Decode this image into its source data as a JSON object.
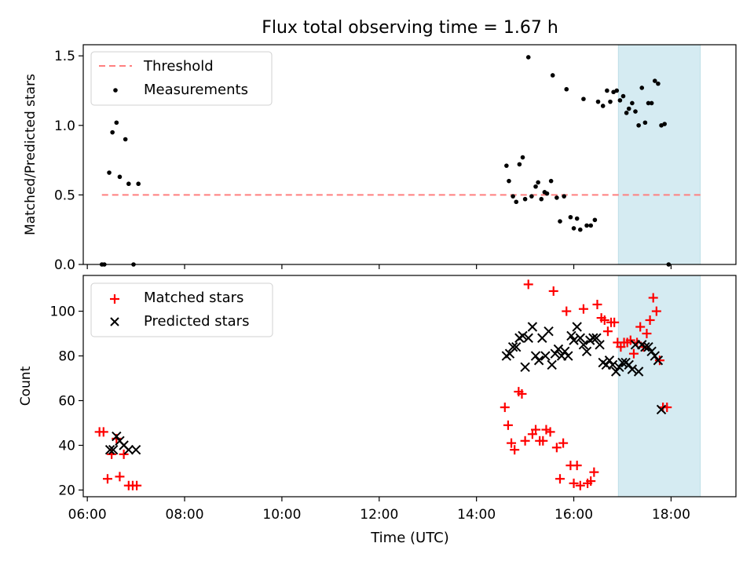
{
  "figure": {
    "title": "Flux total observing time = 1.67 h",
    "xlabel": "Time (UTC)",
    "highlight_color": "#add8e6"
  },
  "chart_data": [
    {
      "type": "scatter",
      "title": "Flux total observing time = 1.67 h",
      "xlabel": "",
      "ylabel": "Matched/Predicted stars",
      "x_unit": "hours (UTC)",
      "xlim": [
        "05:55",
        "19:20"
      ],
      "ylim": [
        0,
        1.58
      ],
      "yticks": [
        "0.0",
        "0.5",
        "1.0",
        "1.5"
      ],
      "xticks": [
        "06:00",
        "08:00",
        "10:00",
        "12:00",
        "14:00",
        "16:00",
        "18:00"
      ],
      "highlight_span": [
        "16:55",
        "18:36"
      ],
      "legend": {
        "placement": "upper left",
        "entries": [
          "Threshold",
          "Measurements"
        ]
      },
      "threshold": {
        "name": "Threshold",
        "value": 0.5,
        "x": [
          "06:18",
          "18:40"
        ],
        "color": "#ff7f7f",
        "style": "dashed"
      },
      "series": [
        {
          "name": "Measurements",
          "marker": "dot",
          "color": "#000000",
          "points": [
            [
              "06:18",
              0.0
            ],
            [
              "06:21",
              0.0
            ],
            [
              "06:27",
              0.66
            ],
            [
              "06:31",
              0.95
            ],
            [
              "06:36",
              1.02
            ],
            [
              "06:40",
              0.63
            ],
            [
              "06:47",
              0.9
            ],
            [
              "06:51",
              0.58
            ],
            [
              "06:57",
              0.0
            ],
            [
              "07:03",
              0.58
            ],
            [
              "14:37",
              0.71
            ],
            [
              "14:40",
              0.6
            ],
            [
              "14:45",
              0.49
            ],
            [
              "14:49",
              0.45
            ],
            [
              "14:53",
              0.72
            ],
            [
              "14:57",
              0.77
            ],
            [
              "15:00",
              0.47
            ],
            [
              "15:04",
              1.49
            ],
            [
              "15:08",
              0.49
            ],
            [
              "15:13",
              0.56
            ],
            [
              "15:16",
              0.59
            ],
            [
              "15:20",
              0.47
            ],
            [
              "15:24",
              0.52
            ],
            [
              "15:27",
              0.51
            ],
            [
              "15:32",
              0.6
            ],
            [
              "15:34",
              1.36
            ],
            [
              "15:39",
              0.48
            ],
            [
              "15:43",
              0.31
            ],
            [
              "15:48",
              0.49
            ],
            [
              "15:51",
              1.26
            ],
            [
              "15:56",
              0.34
            ],
            [
              "16:00",
              0.26
            ],
            [
              "16:04",
              0.33
            ],
            [
              "16:08",
              0.25
            ],
            [
              "16:12",
              1.19
            ],
            [
              "16:16",
              0.28
            ],
            [
              "16:21",
              0.28
            ],
            [
              "16:26",
              0.32
            ],
            [
              "16:30",
              1.17
            ],
            [
              "16:36",
              1.14
            ],
            [
              "16:41",
              1.25
            ],
            [
              "16:45",
              1.17
            ],
            [
              "16:49",
              1.24
            ],
            [
              "16:53",
              1.25
            ],
            [
              "16:57",
              1.18
            ],
            [
              "17:01",
              1.21
            ],
            [
              "17:05",
              1.09
            ],
            [
              "17:08",
              1.12
            ],
            [
              "17:12",
              1.16
            ],
            [
              "17:16",
              1.1
            ],
            [
              "17:20",
              1.0
            ],
            [
              "17:24",
              1.27
            ],
            [
              "17:28",
              1.02
            ],
            [
              "17:32",
              1.16
            ],
            [
              "17:36",
              1.16
            ],
            [
              "17:40",
              1.32
            ],
            [
              "17:44",
              1.3
            ],
            [
              "17:48",
              1.0
            ],
            [
              "17:52",
              1.01
            ],
            [
              "17:57",
              0.0
            ]
          ]
        }
      ]
    },
    {
      "type": "scatter",
      "title": "",
      "xlabel": "Time (UTC)",
      "ylabel": "Count",
      "x_unit": "hours (UTC)",
      "xlim": [
        "05:55",
        "19:20"
      ],
      "ylim": [
        17,
        116
      ],
      "yticks": [
        "20",
        "40",
        "60",
        "80",
        "100"
      ],
      "xticks": [
        "06:00",
        "08:00",
        "10:00",
        "12:00",
        "14:00",
        "16:00",
        "18:00"
      ],
      "highlight_span": [
        "16:55",
        "18:36"
      ],
      "legend": {
        "placement": "upper left",
        "entries": [
          "Matched stars",
          "Predicted stars"
        ]
      },
      "series": [
        {
          "name": "Matched stars",
          "marker": "plus",
          "color": "#ff0000",
          "points": [
            [
              "06:15",
              46
            ],
            [
              "06:20",
              46
            ],
            [
              "06:25",
              25
            ],
            [
              "06:30",
              36
            ],
            [
              "06:36",
              43
            ],
            [
              "06:40",
              26
            ],
            [
              "06:45",
              36
            ],
            [
              "06:51",
              22
            ],
            [
              "06:56",
              22
            ],
            [
              "07:01",
              22
            ],
            [
              "14:35",
              57
            ],
            [
              "14:39",
              49
            ],
            [
              "14:43",
              41
            ],
            [
              "14:47",
              38
            ],
            [
              "14:52",
              64
            ],
            [
              "14:56",
              63
            ],
            [
              "15:00",
              42
            ],
            [
              "15:04",
              112
            ],
            [
              "15:09",
              45
            ],
            [
              "15:13",
              47
            ],
            [
              "15:18",
              42
            ],
            [
              "15:22",
              42
            ],
            [
              "15:26",
              47
            ],
            [
              "15:31",
              46
            ],
            [
              "15:35",
              109
            ],
            [
              "15:39",
              39
            ],
            [
              "15:43",
              25
            ],
            [
              "15:47",
              41
            ],
            [
              "15:51",
              100
            ],
            [
              "15:56",
              31
            ],
            [
              "16:00",
              23
            ],
            [
              "16:04",
              31
            ],
            [
              "16:08",
              22
            ],
            [
              "16:12",
              101
            ],
            [
              "16:17",
              23
            ],
            [
              "16:21",
              24
            ],
            [
              "16:25",
              28
            ],
            [
              "16:29",
              103
            ],
            [
              "16:34",
              97
            ],
            [
              "16:38",
              96
            ],
            [
              "16:42",
              91
            ],
            [
              "16:46",
              95
            ],
            [
              "16:50",
              95
            ],
            [
              "16:54",
              86
            ],
            [
              "16:58",
              84
            ],
            [
              "17:02",
              86
            ],
            [
              "17:06",
              86
            ],
            [
              "17:10",
              87
            ],
            [
              "17:14",
              81
            ],
            [
              "17:18",
              86
            ],
            [
              "17:22",
              93
            ],
            [
              "17:26",
              84
            ],
            [
              "17:30",
              90
            ],
            [
              "17:34",
              96
            ],
            [
              "17:38",
              106
            ],
            [
              "17:42",
              100
            ],
            [
              "17:46",
              78
            ],
            [
              "17:50",
              57
            ],
            [
              "17:55",
              57
            ]
          ]
        },
        {
          "name": "Predicted stars",
          "marker": "x",
          "color": "#000000",
          "points": [
            [
              "06:28",
              38
            ],
            [
              "06:32",
              38
            ],
            [
              "06:36",
              44
            ],
            [
              "06:40",
              42
            ],
            [
              "06:45",
              40
            ],
            [
              "06:51",
              38
            ],
            [
              "07:00",
              38
            ],
            [
              "14:37",
              80
            ],
            [
              "14:41",
              81
            ],
            [
              "14:45",
              84
            ],
            [
              "14:49",
              84
            ],
            [
              "14:53",
              88
            ],
            [
              "14:57",
              89
            ],
            [
              "15:00",
              75
            ],
            [
              "15:04",
              88
            ],
            [
              "15:09",
              93
            ],
            [
              "15:13",
              80
            ],
            [
              "15:17",
              78
            ],
            [
              "15:21",
              88
            ],
            [
              "15:25",
              80
            ],
            [
              "15:29",
              91
            ],
            [
              "15:33",
              76
            ],
            [
              "15:37",
              81
            ],
            [
              "15:41",
              83
            ],
            [
              "15:45",
              80
            ],
            [
              "15:49",
              82
            ],
            [
              "15:53",
              80
            ],
            [
              "15:57",
              89
            ],
            [
              "16:00",
              87
            ],
            [
              "16:04",
              93
            ],
            [
              "16:08",
              88
            ],
            [
              "16:12",
              85
            ],
            [
              "16:16",
              82
            ],
            [
              "16:20",
              87
            ],
            [
              "16:24",
              88
            ],
            [
              "16:28",
              88
            ],
            [
              "16:32",
              85
            ],
            [
              "16:36",
              77
            ],
            [
              "16:40",
              76
            ],
            [
              "16:44",
              78
            ],
            [
              "16:48",
              76
            ],
            [
              "16:52",
              73
            ],
            [
              "16:56",
              75
            ],
            [
              "17:00",
              77
            ],
            [
              "17:04",
              77
            ],
            [
              "17:08",
              76
            ],
            [
              "17:12",
              74
            ],
            [
              "17:16",
              85
            ],
            [
              "17:20",
              73
            ],
            [
              "17:24",
              85
            ],
            [
              "17:28",
              84
            ],
            [
              "17:32",
              84
            ],
            [
              "17:36",
              82
            ],
            [
              "17:40",
              80
            ],
            [
              "17:44",
              78
            ],
            [
              "17:48",
              56
            ]
          ]
        }
      ]
    }
  ]
}
